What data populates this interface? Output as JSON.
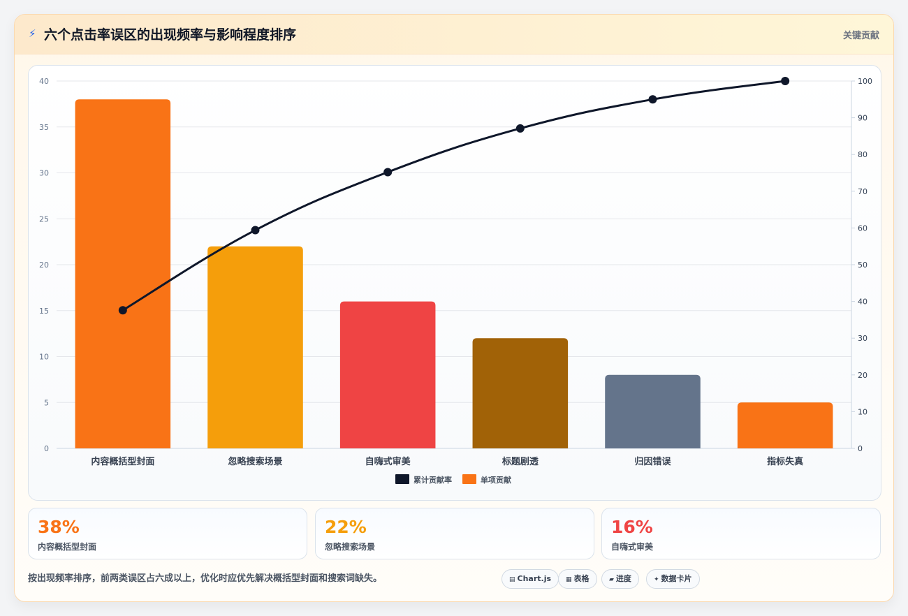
{
  "header": {
    "icon": "lightning-icon",
    "title": "六个点击率误区的出现频率与影响程度排序",
    "tag": "关键贡献"
  },
  "chart_data": {
    "type": "bar",
    "categories": [
      "内容概括型封面",
      "忽略搜索场景",
      "自嗨式审美",
      "标题剧透",
      "归因错误",
      "指标失真"
    ],
    "series": [
      {
        "name": "单项贡献",
        "type": "bar",
        "axis": "left",
        "values": [
          38,
          22,
          16,
          12,
          8,
          5
        ],
        "colors": [
          "#f97316",
          "#f59e0b",
          "#ef4444",
          "#a16207",
          "#64748b",
          "#f97316"
        ]
      },
      {
        "name": "累计贡献率",
        "type": "line",
        "axis": "right",
        "values": [
          37.6,
          59.4,
          75.2,
          87.1,
          95.0,
          100
        ],
        "color": "#0f172a"
      }
    ],
    "y_left": {
      "min": 0,
      "max": 40,
      "ticks": [
        0,
        5,
        10,
        15,
        20,
        25,
        30,
        35,
        40
      ]
    },
    "y_right": {
      "min": 0,
      "max": 100,
      "ticks": [
        0,
        10,
        20,
        30,
        40,
        50,
        60,
        70,
        80,
        90,
        100
      ]
    },
    "legend": [
      {
        "name": "累计贡献率",
        "color": "#0f172a"
      },
      {
        "name": "单项贡献",
        "color": "#f97316"
      }
    ],
    "legend_position": "bottom",
    "grid": true
  },
  "stats": [
    {
      "value": "38%",
      "label": "内容概括型封面",
      "color": "#f97316"
    },
    {
      "value": "22%",
      "label": "忽略搜索场景",
      "color": "#f59e0b"
    },
    {
      "value": "16%",
      "label": "自嗨式审美",
      "color": "#ef4444"
    }
  ],
  "footnote": "按出现频率排序，前两类误区占六成以上，优化时应优先解决概括型封面和搜索词缺失。",
  "badges": [
    {
      "icon": "▤",
      "label": "Chart.js"
    },
    {
      "icon": "▦",
      "label": "表格"
    },
    {
      "icon": "▰",
      "label": "进度"
    },
    {
      "icon": "✦",
      "label": "数据卡片"
    }
  ]
}
